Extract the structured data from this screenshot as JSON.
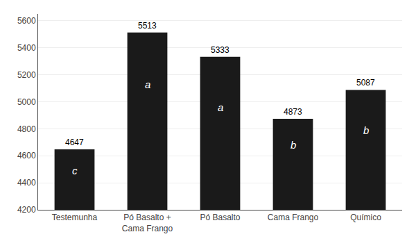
{
  "chart_data": {
    "type": "bar",
    "categories": [
      "Testemunha",
      "Pó Basalto +\nCama Frango",
      "Pó Basalto",
      "Cama Frango",
      "Químico"
    ],
    "values": [
      4647,
      5513,
      5333,
      4873,
      5087
    ],
    "color": "#1a1a1a",
    "data_labels": true,
    "annotations": [
      {
        "text": "c",
        "x": "Testemunha",
        "y": 4490
      },
      {
        "text": "a",
        "x": "Pó Basalto +\nCama Frango",
        "y": 5130
      },
      {
        "text": "a",
        "x": "Pó Basalto",
        "y": 4960
      },
      {
        "text": "b",
        "x": "Cama Frango",
        "y": 4680
      },
      {
        "text": "b",
        "x": "Químico",
        "y": 4790
      }
    ],
    "ylim": [
      4200,
      5650
    ],
    "yticks": [
      4200,
      4400,
      4600,
      4800,
      5000,
      5200,
      5400,
      5600
    ],
    "grid": true
  }
}
